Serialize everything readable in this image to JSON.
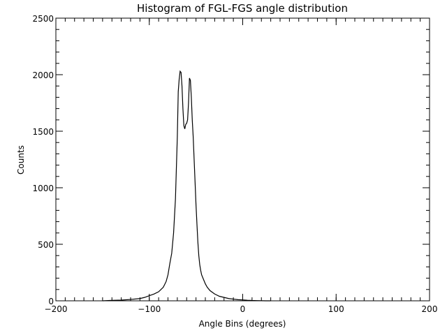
{
  "chart_data": {
    "type": "line",
    "title": "Histogram of FGL-FGS angle distribution",
    "xlabel": "Angle Bins (degrees)",
    "ylabel": "Counts",
    "xlim": [
      -200,
      200
    ],
    "ylim": [
      0,
      2500
    ],
    "x_ticks": [
      -200,
      -100,
      0,
      100,
      200
    ],
    "y_ticks": [
      0,
      500,
      1000,
      1500,
      2000,
      2500
    ],
    "x_tick_labels": [
      "−200",
      "−100",
      "0",
      "100",
      "200"
    ],
    "y_tick_labels": [
      "0",
      "500",
      "1000",
      "1500",
      "2000",
      "2500"
    ],
    "x_minor_step": 10,
    "y_minor_step": 100,
    "grid": false,
    "legend": "none",
    "series": [
      {
        "x": [
          -150,
          -140,
          -130,
          -120,
          -110,
          -105,
          -100,
          -95,
          -90,
          -85,
          -82,
          -80,
          -78,
          -76,
          -74,
          -72,
          -70,
          -69,
          -68,
          -67,
          -66,
          -65,
          -64,
          -63,
          -62,
          -61,
          -60,
          -59,
          -58,
          -57,
          -56,
          -55,
          -54,
          -53,
          -52,
          -51,
          -50,
          -49,
          -48,
          -47,
          -46,
          -45,
          -44,
          -42,
          -40,
          -38,
          -35,
          -30,
          -25,
          -20,
          -15,
          -10,
          -5,
          0,
          5,
          10,
          15,
          20,
          25,
          30
        ],
        "y": [
          0,
          4,
          6,
          12,
          20,
          30,
          45,
          60,
          80,
          120,
          170,
          230,
          330,
          420,
          600,
          900,
          1450,
          1850,
          1960,
          2030,
          2020,
          1900,
          1700,
          1550,
          1520,
          1560,
          1570,
          1600,
          1750,
          1970,
          1950,
          1800,
          1600,
          1450,
          1250,
          1050,
          850,
          680,
          520,
          400,
          320,
          270,
          230,
          190,
          150,
          120,
          90,
          60,
          40,
          30,
          20,
          15,
          10,
          8,
          5,
          3,
          2,
          1,
          0,
          0
        ]
      }
    ]
  }
}
